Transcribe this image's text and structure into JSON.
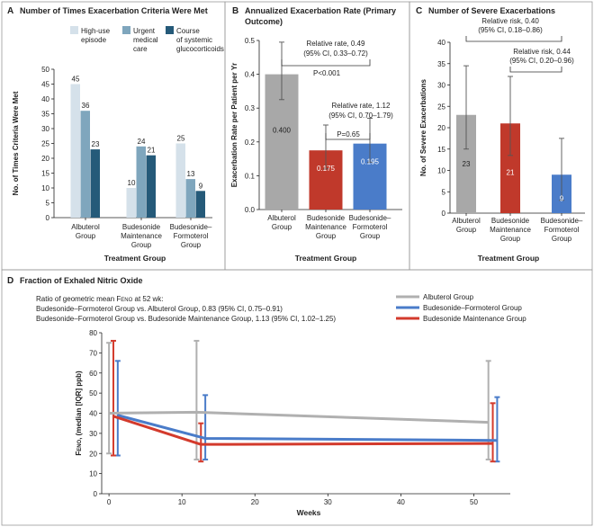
{
  "chart_data": [
    {
      "type": "bar",
      "panel_letter": "A",
      "title": "Number of Times Exacerbation Criteria Were Met",
      "xlabel": "Treatment Group",
      "ylabel": "No. of Times Criteria Were Met",
      "ylim": [
        0,
        50
      ],
      "yticks": [
        "0",
        "5",
        "10",
        "15",
        "20",
        "25",
        "30",
        "35",
        "40",
        "45",
        "50"
      ],
      "categories": [
        [
          "Albuterol",
          "Group"
        ],
        [
          "Budesonide",
          "Maintenance",
          "Group"
        ],
        [
          "Budesonide–",
          "Formoterol",
          "Group"
        ]
      ],
      "legend": [
        {
          "name": [
            "High-use",
            "episode"
          ],
          "color": "#d5e1ea"
        },
        {
          "name": [
            "Urgent",
            "medical",
            "care"
          ],
          "color": "#7fa6bd"
        },
        {
          "name": [
            "Course",
            "of systemic",
            "glucocorticoids"
          ],
          "color": "#255a79"
        }
      ],
      "series": [
        {
          "name": "High-use episode",
          "color": "#d5e1ea",
          "values": [
            45,
            10,
            25
          ]
        },
        {
          "name": "Urgent medical care",
          "color": "#7fa6bd",
          "values": [
            36,
            24,
            13
          ]
        },
        {
          "name": "Course of systemic glucocorticoids",
          "color": "#255a79",
          "values": [
            23,
            21,
            9
          ]
        }
      ]
    },
    {
      "type": "bar",
      "panel_letter": "B",
      "title": [
        "Annualized Exacerbation Rate (Primary",
        "Outcome)"
      ],
      "xlabel": "Treatment Group",
      "ylabel": "Exacerbation Rate per Patient per Yr",
      "ylim": [
        0,
        0.5
      ],
      "yticks": [
        "0.0",
        "0.1",
        "0.2",
        "0.3",
        "0.4",
        "0.5"
      ],
      "categories": [
        [
          "Albuterol",
          "Group"
        ],
        [
          "Budesonide",
          "Maintenance",
          "Group"
        ],
        [
          "Budesonide–",
          "Formoterol",
          "Group"
        ]
      ],
      "values": [
        0.4,
        0.175,
        0.195
      ],
      "value_labels": [
        "0.400",
        "0.175",
        "0.195"
      ],
      "errors": [
        [
          0.325,
          0.495
        ],
        [
          0.12,
          0.25
        ],
        [
          0.14,
          0.27
        ]
      ],
      "colors": [
        "#a8a8a8",
        "#c0392b",
        "#4a7cc9"
      ],
      "annotations": [
        [
          "Relative rate, 0.49",
          "(95% CI, 0.33–0.72)",
          "P<0.001"
        ],
        [
          "Relative rate, 1.12",
          "(95% CI, 0.70–1.79)",
          "P=0.65"
        ]
      ]
    },
    {
      "type": "bar",
      "panel_letter": "C",
      "title": "Number of Severe Exacerbations",
      "xlabel": "Treatment Group",
      "ylabel": "No. of Severe Exacerbations",
      "ylim": [
        0,
        40
      ],
      "yticks": [
        "0",
        "5",
        "10",
        "15",
        "20",
        "25",
        "30",
        "35",
        "40"
      ],
      "categories": [
        [
          "Albuterol",
          "Group"
        ],
        [
          "Budesonide",
          "Maintenance",
          "Group"
        ],
        [
          "Budesonide–",
          "Formoterol",
          "Group"
        ]
      ],
      "values": [
        23,
        21,
        9
      ],
      "value_labels": [
        "23",
        "21",
        "9"
      ],
      "errors": [
        [
          15,
          34.5
        ],
        [
          13.5,
          32
        ],
        [
          3,
          17.5
        ]
      ],
      "colors": [
        "#a8a8a8",
        "#c0392b",
        "#4a7cc9"
      ],
      "annotations": [
        [
          "Relative risk, 0.40",
          "(95% CI, 0.18–0.86)"
        ],
        [
          "Relative risk, 0.44",
          "(95% CI, 0.20–0.96)"
        ]
      ]
    },
    {
      "type": "line",
      "panel_letter": "D",
      "title": "Fraction of Exhaled Nitric Oxide",
      "xlabel": "Weeks",
      "ylabel": [
        "F",
        "ENO",
        ", (median [IQR] ppb)"
      ],
      "xlim": [
        -1,
        55
      ],
      "ylim": [
        0,
        80
      ],
      "xticks": [
        "0",
        "10",
        "20",
        "30",
        "40",
        "50"
      ],
      "yticks": [
        "0",
        "10",
        "20",
        "30",
        "40",
        "50",
        "60",
        "70",
        "80"
      ],
      "notes": [
        [
          "Ratio of geometric mean F",
          "ENO",
          " at 52 wk:"
        ],
        "Budesonide–Formoterol Group vs. Albuterol Group, 0.83 (95% CI, 0.75–0.91)",
        "Budesonide–Formoterol Group vs. Budesonide Maintenance Group, 1.13 (95% CI, 1.02–1.25)"
      ],
      "series": [
        {
          "name": "Albuterol Group",
          "color": "#b0b0b0",
          "x": [
            0,
            12,
            52
          ],
          "y": [
            40,
            40.5,
            35.5
          ],
          "err": [
            [
              20,
              75
            ],
            [
              17,
              76
            ],
            [
              17,
              66
            ]
          ]
        },
        {
          "name": "Budesonide–Formoterol Group",
          "color": "#4a7cc9",
          "x": [
            0,
            12,
            52
          ],
          "y": [
            39,
            27.5,
            26.5
          ],
          "err": [
            [
              19,
              66
            ],
            [
              17,
              49
            ],
            [
              16,
              48
            ]
          ]
        },
        {
          "name": "Budesonide Maintenance Group",
          "color": "#d33a2c",
          "x": [
            0,
            12,
            52
          ],
          "y": [
            38.5,
            24.5,
            25
          ],
          "err": [
            [
              19,
              76
            ],
            [
              16,
              35
            ],
            [
              16,
              45
            ]
          ]
        }
      ]
    }
  ]
}
